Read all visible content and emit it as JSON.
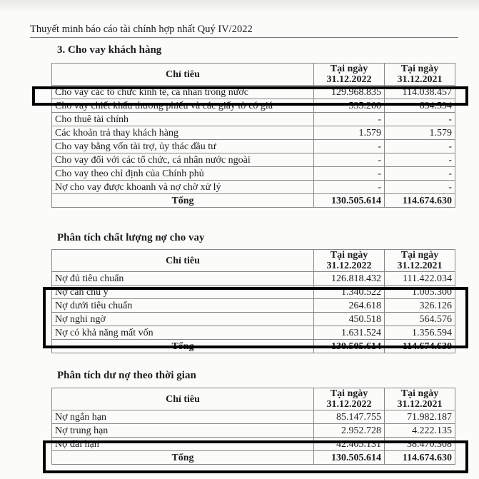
{
  "document_title": "Thuyết minh báo cáo tài chính hợp nhất Quý IV/2022",
  "section1": {
    "heading": "3.  Cho vay khách hàng",
    "headers": [
      "Chỉ tiêu",
      "Tại ngày 31.12.2022",
      "Tại ngày 31.12.2021"
    ],
    "rows": [
      {
        "label": "Cho vay các tổ chức kinh tế, cá nhân trong nước",
        "v2022": "129.968.835",
        "v2021": "114.038.457"
      },
      {
        "label": "Cho vay chiết khấu thương phiếu và các giấy tờ có giá",
        "v2022": "535.200",
        "v2021": "634.594"
      },
      {
        "label": "Cho thuê tài chính",
        "v2022": "-",
        "v2021": "-"
      },
      {
        "label": "Các khoản trả thay khách hàng",
        "v2022": "1.579",
        "v2021": "1.579"
      },
      {
        "label": "Cho vay bằng vốn tài trợ, ủy thác đầu tư",
        "v2022": "-",
        "v2021": "-"
      },
      {
        "label": "Cho vay đối với các tổ chức, cá nhân nước ngoài",
        "v2022": "-",
        "v2021": "-"
      },
      {
        "label": "Cho vay theo chỉ định của Chính phủ",
        "v2022": "-",
        "v2021": "-"
      },
      {
        "label": "Nợ cho vay được khoanh và nợ chờ xử lý",
        "v2022": "-",
        "v2021": "-"
      }
    ],
    "total": {
      "label": "Tổng",
      "v2022": "130.505.614",
      "v2021": "114.674.630"
    }
  },
  "section2": {
    "heading": "Phân tích chất lượng nợ cho vay",
    "headers": [
      "Chỉ tiêu",
      "Tại ngày 31.12.2022",
      "Tại ngày 31.12.2021"
    ],
    "rows": [
      {
        "label": "Nợ đủ tiêu chuẩn",
        "v2022": "126.818.432",
        "v2021": "111.422.034"
      },
      {
        "label": "Nợ cần chú ý",
        "v2022": "1.340.522",
        "v2021": "1.005.300"
      },
      {
        "label": "Nợ dưới tiêu chuẩn",
        "v2022": "264.618",
        "v2021": "326.126"
      },
      {
        "label": "Nợ nghi ngờ",
        "v2022": "450.518",
        "v2021": "564.576"
      },
      {
        "label": "Nợ có khả năng mất vốn",
        "v2022": "1.631.524",
        "v2021": "1.356.594"
      }
    ],
    "total": {
      "label": "Tổng",
      "v2022": "130.505.614",
      "v2021": "114.674.630"
    }
  },
  "section3": {
    "heading": "Phân tích dư nợ theo thời gian",
    "headers": [
      "Chỉ tiêu",
      "Tại ngày 31.12.2022",
      "Tại ngày 31.12.2021"
    ],
    "rows": [
      {
        "label": "Nợ ngắn hạn",
        "v2022": "85.147.755",
        "v2021": "71.982.187"
      },
      {
        "label": "Nợ trung hạn",
        "v2022": "2.952.728",
        "v2021": "4.222.135"
      },
      {
        "label": "Nợ dài hạn",
        "v2022": "42.405.131",
        "v2021": "38.470.308"
      }
    ],
    "total": {
      "label": "Tổng",
      "v2022": "130.505.614",
      "v2021": "114.674.630"
    }
  },
  "highlight_color": "#000000"
}
